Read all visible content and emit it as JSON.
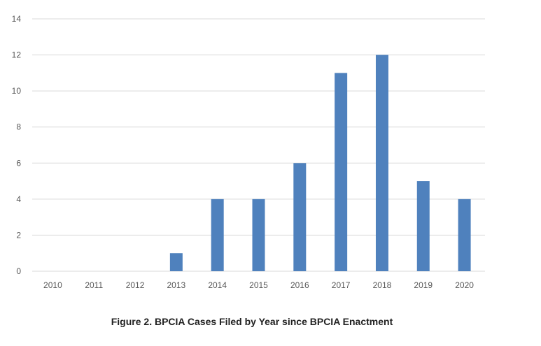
{
  "caption": "Figure 2. BPCIA Cases Filed by Year since BPCIA Enactment",
  "chart_data": {
    "type": "bar",
    "categories": [
      "2010",
      "2011",
      "2012",
      "2013",
      "2014",
      "2015",
      "2016",
      "2017",
      "2018",
      "2019",
      "2020"
    ],
    "values": [
      0,
      0,
      0,
      1,
      4,
      4,
      6,
      11,
      12,
      5,
      4
    ],
    "title": "",
    "xlabel": "",
    "ylabel": "",
    "ylim": [
      0,
      14
    ],
    "yticks": [
      "0",
      "2",
      "4",
      "6",
      "8",
      "10",
      "12",
      "14"
    ],
    "grid": true,
    "legend": "none",
    "bar_color": "#4f81bd",
    "grid_color": "#d9d9d9"
  }
}
